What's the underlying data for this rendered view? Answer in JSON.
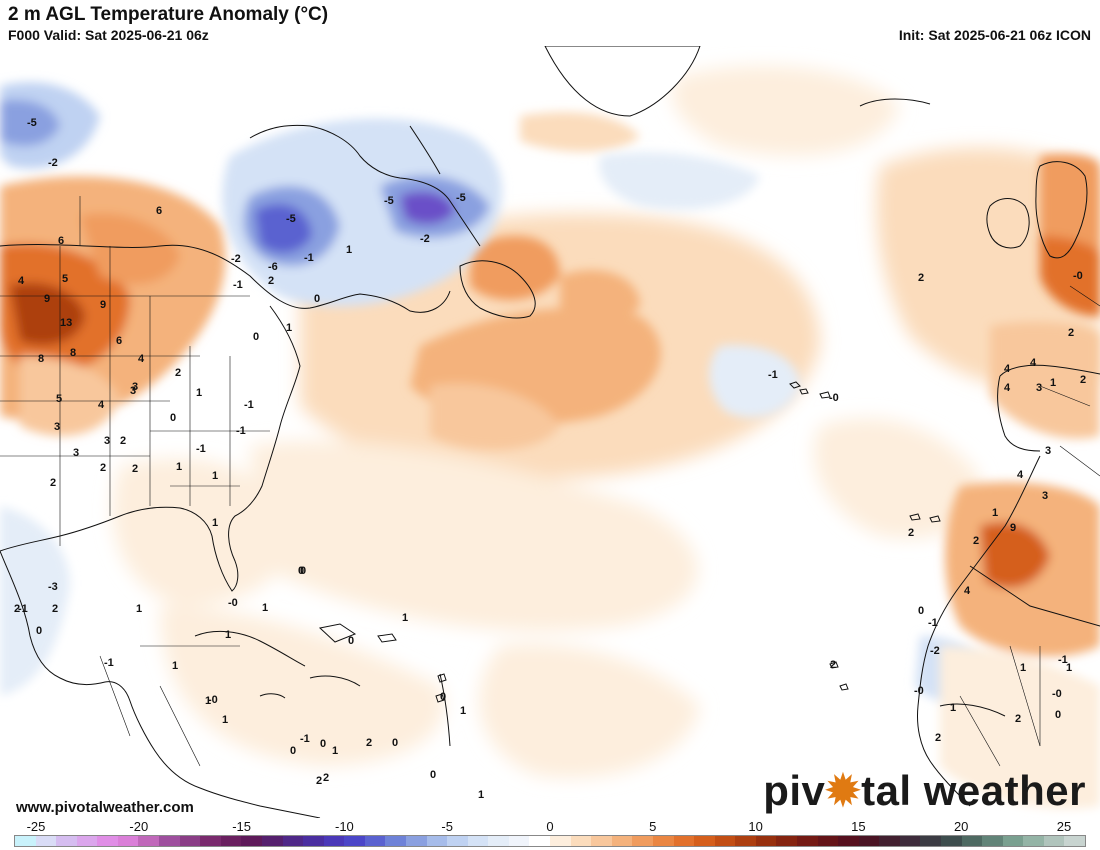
{
  "header": {
    "title": "2 m AGL Temperature Anomaly (°C)",
    "valid": "F000 Valid: Sat 2025-06-21 06z",
    "init": "Init: Sat 2025-06-21 06z ICON"
  },
  "footer": {
    "website": "www.pivotalweather.com",
    "brand_before": "piv",
    "brand_gear": "✹",
    "brand_after": "tal weather"
  },
  "colorbar": {
    "min": -25,
    "max": 25,
    "ticks": [
      "-25",
      "-20",
      "-15",
      "-10",
      "-5",
      "0",
      "5",
      "10",
      "15",
      "20",
      "25"
    ],
    "colors": [
      "#c9f2fb",
      "#d9dcf6",
      "#d5bdf0",
      "#dba6ec",
      "#e08ee6",
      "#da7fd8",
      "#c068ba",
      "#9e4f9e",
      "#8a3d86",
      "#7a2a6e",
      "#6a2060",
      "#5e1a5a",
      "#55206e",
      "#4f2888",
      "#4a2ea0",
      "#4a38b8",
      "#4b46c8",
      "#5a62d0",
      "#6e82d8",
      "#8aa0e0",
      "#a6bcea",
      "#bfd2f2",
      "#d4e2f6",
      "#e4edf8",
      "#f0f4fb",
      "#ffffff",
      "#fdeedd",
      "#fbdcbc",
      "#f8c79c",
      "#f4b27c",
      "#f09c5e",
      "#ea8642",
      "#e2712c",
      "#d55f1c",
      "#c24e14",
      "#ad3f10",
      "#97300e",
      "#852410",
      "#741a14",
      "#641418",
      "#56101e",
      "#4a1424",
      "#422030",
      "#3e2c3c",
      "#3c3c44",
      "#3e4e4e",
      "#4e6a62",
      "#628478",
      "#7aa090",
      "#94b4a6",
      "#b0c4bc",
      "#c8d4d0"
    ]
  },
  "map_labels": [
    {
      "text": "-2"
    },
    {
      "text": "-5"
    },
    {
      "text": "6"
    },
    {
      "text": "6"
    },
    {
      "text": "4"
    },
    {
      "text": "5"
    },
    {
      "text": "9"
    },
    {
      "text": "9"
    },
    {
      "text": "13"
    },
    {
      "text": "8"
    },
    {
      "text": "8"
    },
    {
      "text": "6"
    },
    {
      "text": "4"
    },
    {
      "text": "4"
    },
    {
      "text": "5"
    },
    {
      "text": "3"
    },
    {
      "text": "3"
    },
    {
      "text": "2"
    },
    {
      "text": "2"
    },
    {
      "text": "2"
    },
    {
      "text": "3"
    },
    {
      "text": "3"
    },
    {
      "text": "2"
    },
    {
      "text": "1"
    },
    {
      "text": "0"
    },
    {
      "text": "-1"
    },
    {
      "text": "-1"
    },
    {
      "text": "1"
    },
    {
      "text": "-1"
    },
    {
      "text": "1"
    },
    {
      "text": "1"
    },
    {
      "text": "2"
    },
    {
      "text": "3"
    },
    {
      "text": "-5"
    },
    {
      "text": "-6"
    },
    {
      "text": "-2"
    },
    {
      "text": "-1"
    },
    {
      "text": "0"
    },
    {
      "text": "-5"
    },
    {
      "text": "-2"
    },
    {
      "text": "-5"
    },
    {
      "text": "0"
    },
    {
      "text": "1"
    },
    {
      "text": "2"
    },
    {
      "text": "1"
    },
    {
      "text": "-1"
    },
    {
      "text": "2"
    },
    {
      "text": "-0"
    },
    {
      "text": "-1"
    },
    {
      "text": "-0"
    },
    {
      "text": "2"
    },
    {
      "text": "4"
    },
    {
      "text": "4"
    },
    {
      "text": "2"
    },
    {
      "text": "4"
    },
    {
      "text": "3"
    },
    {
      "text": "1"
    },
    {
      "text": "3"
    },
    {
      "text": "4"
    },
    {
      "text": "3"
    },
    {
      "text": "9"
    },
    {
      "text": "2"
    },
    {
      "text": "1"
    },
    {
      "text": "4"
    },
    {
      "text": "-2"
    },
    {
      "text": "2"
    },
    {
      "text": "2"
    },
    {
      "text": "-0"
    },
    {
      "text": "1"
    },
    {
      "text": "1"
    },
    {
      "text": "-0"
    },
    {
      "text": "2"
    },
    {
      "text": "0"
    },
    {
      "text": "2"
    },
    {
      "text": "1"
    },
    {
      "text": "-1"
    },
    {
      "text": "0"
    },
    {
      "text": "-1"
    },
    {
      "text": "0"
    },
    {
      "text": "1"
    },
    {
      "text": "-0"
    },
    {
      "text": "1"
    },
    {
      "text": "-0"
    },
    {
      "text": "0"
    },
    {
      "text": "1"
    },
    {
      "text": "0"
    },
    {
      "text": "2"
    },
    {
      "text": "1"
    },
    {
      "text": "0"
    },
    {
      "text": "1"
    },
    {
      "text": "2"
    },
    {
      "text": "0"
    },
    {
      "text": "2"
    },
    {
      "text": "0"
    },
    {
      "text": "0"
    },
    {
      "text": "1"
    },
    {
      "text": "1"
    },
    {
      "text": "0"
    },
    {
      "text": "-1"
    },
    {
      "text": "1"
    },
    {
      "text": "-3"
    },
    {
      "text": "2"
    },
    {
      "text": "-1"
    },
    {
      "text": "2"
    },
    {
      "text": "0"
    },
    {
      "text": "1"
    },
    {
      "text": "1"
    },
    {
      "text": "-1"
    }
  ]
}
